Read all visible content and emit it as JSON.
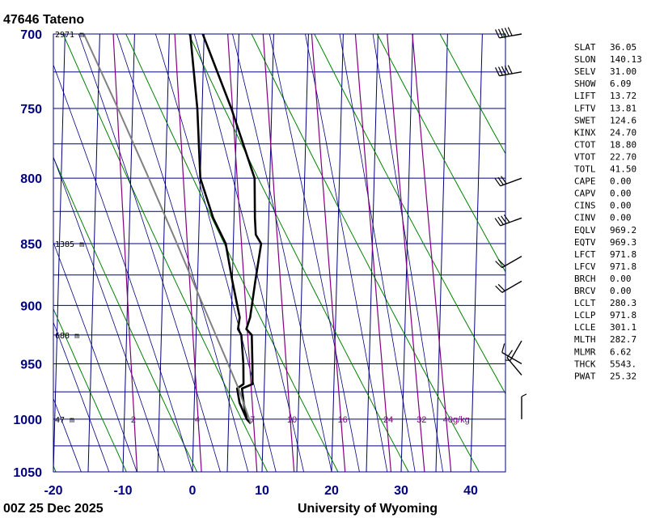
{
  "station_title": "47646  Tateno",
  "footer_left": "00Z 25 Dec 2025",
  "footer_right": "University of Wyoming",
  "colors": {
    "frame": "#000080",
    "isotherm": "#000080",
    "dry_adiabat": "#008000",
    "moist_adiabat": "#000080",
    "mixing_ratio": "#800080",
    "temperature": "#000000",
    "parcel": "#808080"
  },
  "chart_data": {
    "type": "line",
    "subtype": "skew-T log-P sounding",
    "xlim": [
      -20,
      45
    ],
    "ylim": [
      1050,
      700
    ],
    "y_scale": "log",
    "x_ticks": [
      "-20",
      "-10",
      "0",
      "10",
      "20",
      "30",
      "40"
    ],
    "y_ticks": [
      "700",
      "750",
      "800",
      "850",
      "900",
      "950",
      "1000",
      "1050"
    ],
    "grid": true,
    "height_labels": [
      {
        "p": 700,
        "text": "2971 m"
      },
      {
        "p": 850,
        "text": "1385 m"
      },
      {
        "p": 925,
        "text": "688 m"
      },
      {
        "p": 1000,
        "text": "47 m"
      }
    ],
    "mixing_ratio_labels": [
      {
        "w": 2,
        "text": "2"
      },
      {
        "w": 4,
        "text": "4"
      },
      {
        "w": 7,
        "text": "7"
      },
      {
        "w": 10,
        "text": "10"
      },
      {
        "w": 16,
        "text": "16"
      },
      {
        "w": 24,
        "text": "24"
      },
      {
        "w": 32,
        "text": "32"
      },
      {
        "w": 40,
        "text": "40g/kg"
      }
    ],
    "series": [
      {
        "values_p": [
          1004,
          1000,
          985,
          972,
          968,
          950,
          925,
          920,
          910,
          880,
          850,
          843,
          830,
          800,
          750,
          700
        ],
        "values_t": [
          8.2,
          7.6,
          7.1,
          6.8,
          8.3,
          8.2,
          8.0,
          7.2,
          7.7,
          8.3,
          9.0,
          8.2,
          8.0,
          7.8,
          4.2,
          -0.2
        ]
      },
      {
        "values_p": [
          1004,
          1000,
          985,
          972,
          968,
          950,
          925,
          920,
          910,
          880,
          850,
          830,
          800,
          750,
          700
        ],
        "values_t": [
          8.2,
          7.6,
          6.5,
          6.1,
          7.0,
          6.9,
          6.5,
          6.0,
          6.2,
          5.0,
          3.9,
          2.0,
          0.0,
          -0.7,
          -2.0
        ]
      },
      {
        "values_p": [
          1004,
          972,
          950,
          900,
          850,
          800,
          750,
          700
        ],
        "values_t": [
          8.2,
          6.3,
          4.7,
          0.9,
          -3.1,
          -7.4,
          -12.1,
          -17.3
        ]
      }
    ],
    "wind_barbs": [
      {
        "p": 700,
        "dir": 260,
        "kt": 50
      },
      {
        "p": 725,
        "dir": 260,
        "kt": 50
      },
      {
        "p": 800,
        "dir": 250,
        "kt": 30
      },
      {
        "p": 830,
        "dir": 250,
        "kt": 40
      },
      {
        "p": 860,
        "dir": 240,
        "kt": 20
      },
      {
        "p": 880,
        "dir": 240,
        "kt": 20
      },
      {
        "p": 930,
        "dir": 210,
        "kt": 5
      },
      {
        "p": 950,
        "dir": 300,
        "kt": 10
      },
      {
        "p": 960,
        "dir": 320,
        "kt": 10
      },
      {
        "p": 1000,
        "dir": 0,
        "kt": 5
      }
    ]
  },
  "indices": [
    {
      "name": "SLAT",
      "value": "36.05"
    },
    {
      "name": "SLON",
      "value": "140.13"
    },
    {
      "name": "SELV",
      "value": "31.00"
    },
    {
      "name": "SHOW",
      "value": "6.09"
    },
    {
      "name": "LIFT",
      "value": "13.72"
    },
    {
      "name": "LFTV",
      "value": "13.81"
    },
    {
      "name": "SWET",
      "value": "124.6"
    },
    {
      "name": "KINX",
      "value": "24.70"
    },
    {
      "name": "CTOT",
      "value": "18.80"
    },
    {
      "name": "VTOT",
      "value": "22.70"
    },
    {
      "name": "TOTL",
      "value": "41.50"
    },
    {
      "name": "CAPE",
      "value": "0.00"
    },
    {
      "name": "CAPV",
      "value": "0.00"
    },
    {
      "name": "CINS",
      "value": "0.00"
    },
    {
      "name": "CINV",
      "value": "0.00"
    },
    {
      "name": "EQLV",
      "value": "969.2"
    },
    {
      "name": "EQTV",
      "value": "969.3"
    },
    {
      "name": "LFCT",
      "value": "971.8"
    },
    {
      "name": "LFCV",
      "value": "971.8"
    },
    {
      "name": "BRCH",
      "value": "0.00"
    },
    {
      "name": "BRCV",
      "value": "0.00"
    },
    {
      "name": "LCLT",
      "value": "280.3"
    },
    {
      "name": "LCLP",
      "value": "971.8"
    },
    {
      "name": "LCLE",
      "value": "301.1"
    },
    {
      "name": "MLTH",
      "value": "282.7"
    },
    {
      "name": "MLMR",
      "value": "6.62"
    },
    {
      "name": "THCK",
      "value": "5543."
    },
    {
      "name": "PWAT",
      "value": "25.32"
    }
  ]
}
